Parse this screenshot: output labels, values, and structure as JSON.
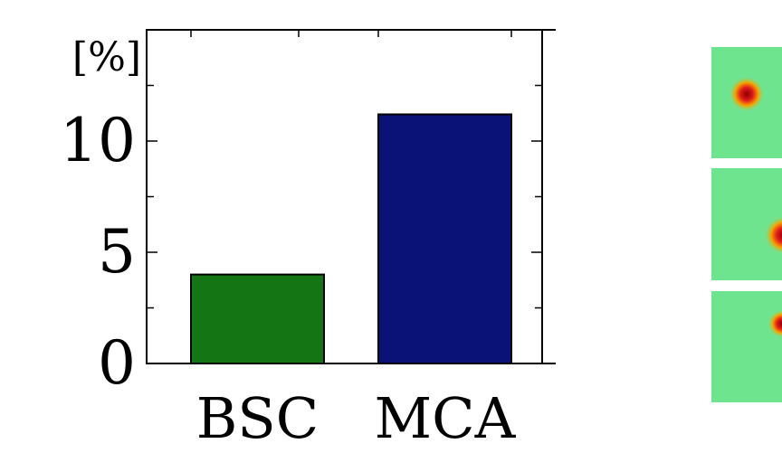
{
  "chart_data": {
    "type": "bar",
    "categories": [
      "BSC",
      "MCA"
    ],
    "values": [
      4.0,
      11.2
    ],
    "ylabel": "[%]",
    "ylim": [
      0,
      15
    ],
    "yticks": [
      0,
      5,
      10
    ],
    "bar_colors": [
      "#137513",
      "#0b1277"
    ],
    "grid": false,
    "legend": "none"
  },
  "thumbnails": {
    "count": 3,
    "background_color": "#6fe48f",
    "blob_colors": [
      "#e01a1a",
      "#f5a500"
    ]
  }
}
